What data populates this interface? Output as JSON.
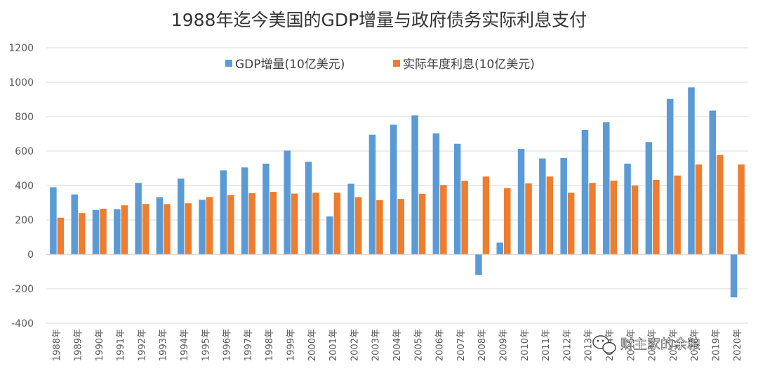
{
  "chart_data": {
    "type": "bar",
    "title": "1988年迄今美国的GDP增量与政府债务实际利息支付",
    "xlabel": "",
    "ylabel": "",
    "ylim": [
      -400,
      1200
    ],
    "yticks": [
      1200,
      1000,
      800,
      600,
      400,
      200,
      0,
      -200,
      -400
    ],
    "grid": true,
    "legend_position": "top-center",
    "categories": [
      "1988年",
      "1989年",
      "1990年",
      "1991年",
      "1992年",
      "1993年",
      "1994年",
      "1995年",
      "1996年",
      "1997年",
      "1998年",
      "1999年",
      "2000年",
      "2001年",
      "2002年",
      "2003年",
      "2004年",
      "2005年",
      "2006年",
      "2007年",
      "2008年",
      "2009年",
      "2010年",
      "2011年",
      "2012年",
      "2013年",
      "2014年",
      "2015年",
      "2016年",
      "2017年",
      "2018年",
      "2019年",
      "2020年"
    ],
    "series": [
      {
        "name": "GDP增量(10亿美元)",
        "color": "#5B9BD5",
        "values": [
          390,
          348,
          258,
          262,
          415,
          332,
          440,
          317,
          488,
          505,
          527,
          603,
          538,
          220,
          410,
          695,
          753,
          807,
          703,
          642,
          -120,
          68,
          612,
          557,
          560,
          723,
          767,
          527,
          652,
          903,
          970,
          835,
          -250
        ]
      },
      {
        "name": "实际年度利息(10亿美元)",
        "color": "#ED7D31",
        "values": [
          213,
          240,
          265,
          285,
          293,
          292,
          297,
          333,
          345,
          355,
          363,
          353,
          358,
          358,
          332,
          315,
          322,
          352,
          403,
          427,
          452,
          385,
          412,
          452,
          358,
          415,
          428,
          400,
          433,
          458,
          522,
          577,
          522
        ]
      }
    ],
    "watermark": {
      "icon": "wechat-icon",
      "text": "财主家的余粮"
    }
  }
}
